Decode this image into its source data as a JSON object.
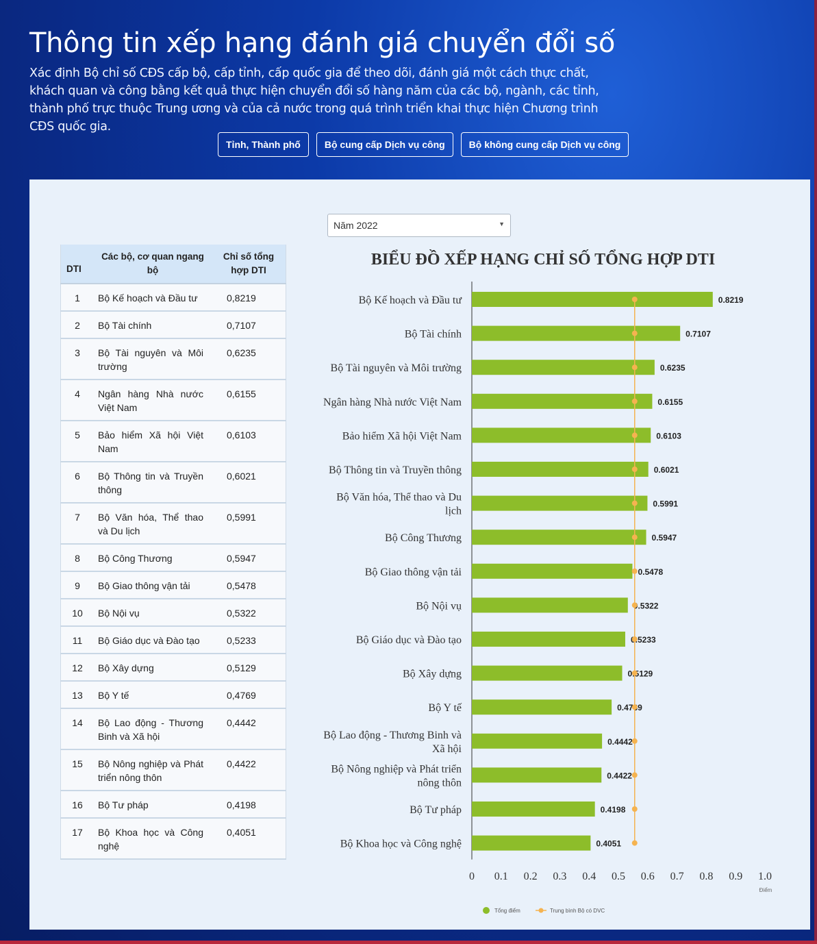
{
  "header": {
    "title": "Thông tin xếp hạng đánh giá chuyển đổi số",
    "description": "Xác định Bộ chỉ số CĐS cấp bộ, cấp tỉnh, cấp quốc gia để theo dõi, đánh giá một cách thực chất, khách quan và công bằng kết quả thực hiện chuyển đổi số hàng năm của các bộ, ngành, các tỉnh, thành phố trực thuộc Trung ương và của cả nước trong quá trình triển khai thực hiện Chương trình CĐS quốc gia."
  },
  "tabs": [
    {
      "label": "Tỉnh, Thành phố"
    },
    {
      "label": "Bộ cung cấp Dịch vụ công"
    },
    {
      "label": "Bộ không cung cấp Dịch vụ công"
    }
  ],
  "year_select": {
    "value": "Năm 2022"
  },
  "table": {
    "headers": {
      "rank": "DTI",
      "name": "Các bộ, cơ quan ngang bộ",
      "value": "Chỉ số tổng hợp DTI"
    },
    "rows": [
      {
        "rank": "1",
        "name": "Bộ Kế hoạch và Đầu tư",
        "value": "0,8219"
      },
      {
        "rank": "2",
        "name": "Bộ Tài chính",
        "value": "0,7107"
      },
      {
        "rank": "3",
        "name": "Bộ Tài nguyên và Môi trường",
        "value": "0,6235"
      },
      {
        "rank": "4",
        "name": "Ngân hàng Nhà nước Việt Nam",
        "value": "0,6155"
      },
      {
        "rank": "5",
        "name": "Bảo hiểm Xã hội Việt Nam",
        "value": "0,6103"
      },
      {
        "rank": "6",
        "name": "Bộ Thông tin và Truyền thông",
        "value": "0,6021"
      },
      {
        "rank": "7",
        "name": "Bộ Văn hóa, Thể thao và Du lịch",
        "value": "0,5991"
      },
      {
        "rank": "8",
        "name": "Bộ Công Thương",
        "value": "0,5947"
      },
      {
        "rank": "9",
        "name": "Bộ Giao thông vận tải",
        "value": "0,5478"
      },
      {
        "rank": "10",
        "name": "Bộ Nội vụ",
        "value": "0,5322"
      },
      {
        "rank": "11",
        "name": "Bộ Giáo dục và Đào tạo",
        "value": "0,5233"
      },
      {
        "rank": "12",
        "name": "Bộ Xây dựng",
        "value": "0,5129"
      },
      {
        "rank": "13",
        "name": "Bộ Y tế",
        "value": "0,4769"
      },
      {
        "rank": "14",
        "name": "Bộ Lao động - Thương Binh và Xã hội",
        "value": "0,4442"
      },
      {
        "rank": "15",
        "name": "Bộ Nông nghiệp và Phát triển nông thôn",
        "value": "0,4422"
      },
      {
        "rank": "16",
        "name": "Bộ Tư pháp",
        "value": "0,4198"
      },
      {
        "rank": "17",
        "name": "Bộ Khoa học và Công nghệ",
        "value": "0,4051"
      }
    ]
  },
  "chart_data": {
    "type": "bar",
    "orientation": "horizontal",
    "title": "BIỂU ĐỒ XẾP HẠNG CHỈ SỐ TỔNG HỢP DTI",
    "categories": [
      "Bộ Kế hoạch và Đầu tư",
      "Bộ Tài chính",
      "Bộ Tài nguyên và Môi trường",
      "Ngân hàng Nhà nước Việt Nam",
      "Bảo hiểm Xã hội Việt Nam",
      "Bộ Thông tin và Truyền thông",
      "Bộ Văn hóa, Thể thao và Du lịch",
      "Bộ Công Thương",
      "Bộ Giao thông vận tải",
      "Bộ Nội vụ",
      "Bộ Giáo dục và Đào tạo",
      "Bộ Xây dựng",
      "Bộ Y tế",
      "Bộ Lao động - Thương Binh và Xã hội",
      "Bộ Nông nghiệp và Phát triển nông thôn",
      "Bộ Tư pháp",
      "Bộ Khoa học và Công nghệ"
    ],
    "category_lines": [
      [
        "Bộ Kế hoạch và Đầu tư"
      ],
      [
        "Bộ Tài chính"
      ],
      [
        "Bộ Tài nguyên và Môi trường"
      ],
      [
        "Ngân hàng Nhà nước Việt Nam"
      ],
      [
        "Bảo hiểm Xã hội Việt Nam"
      ],
      [
        "Bộ Thông tin và Truyền thông"
      ],
      [
        "Bộ Văn hóa, Thể thao và Du",
        "lịch"
      ],
      [
        "Bộ Công Thương"
      ],
      [
        "Bộ Giao thông vận tải"
      ],
      [
        "Bộ Nội vụ"
      ],
      [
        "Bộ Giáo dục và Đào tạo"
      ],
      [
        "Bộ Xây dựng"
      ],
      [
        "Bộ Y tế"
      ],
      [
        "Bộ Lao động - Thương Binh và",
        "Xã hội"
      ],
      [
        "Bộ Nông nghiệp và Phát triển",
        "nông thôn"
      ],
      [
        "Bộ Tư pháp"
      ],
      [
        "Bộ Khoa học và Công nghệ"
      ]
    ],
    "series": [
      {
        "name": "Tổng điểm",
        "type": "bar",
        "color": "#8dbd2a",
        "values": [
          0.8219,
          0.7107,
          0.6235,
          0.6155,
          0.6103,
          0.6021,
          0.5991,
          0.5947,
          0.5478,
          0.5322,
          0.5233,
          0.5129,
          0.4769,
          0.4442,
          0.4422,
          0.4198,
          0.4051
        ]
      },
      {
        "name": "Trung bình Bộ có DVC",
        "type": "line",
        "color": "#f5b350",
        "values": [
          0.5555,
          0.5555,
          0.5555,
          0.5555,
          0.5555,
          0.5555,
          0.5555,
          0.5555,
          0.5555,
          0.5555,
          0.5555,
          0.5555,
          0.5555,
          0.5555,
          0.5555,
          0.5555,
          0.5555
        ]
      }
    ],
    "data_labels": [
      "0.8219",
      "0.7107",
      "0.6235",
      "0.6155",
      "0.6103",
      "0.6021",
      "0.5991",
      "0.5947",
      "0.5478",
      "0.5322",
      "0.5233",
      "0.5129",
      "0.4769",
      "0.4442",
      "0.4422",
      "0.4198",
      "0.4051"
    ],
    "xlim": [
      0,
      1.0
    ],
    "xticks": [
      "0",
      "0.1",
      "0.2",
      "0.3",
      "0.4",
      "0.5",
      "0.6",
      "0.7",
      "0.8",
      "0.9",
      "1.0"
    ],
    "xlabel": "Điểm",
    "ylabel": "",
    "grid": false,
    "legend_position": "bottom-center"
  }
}
